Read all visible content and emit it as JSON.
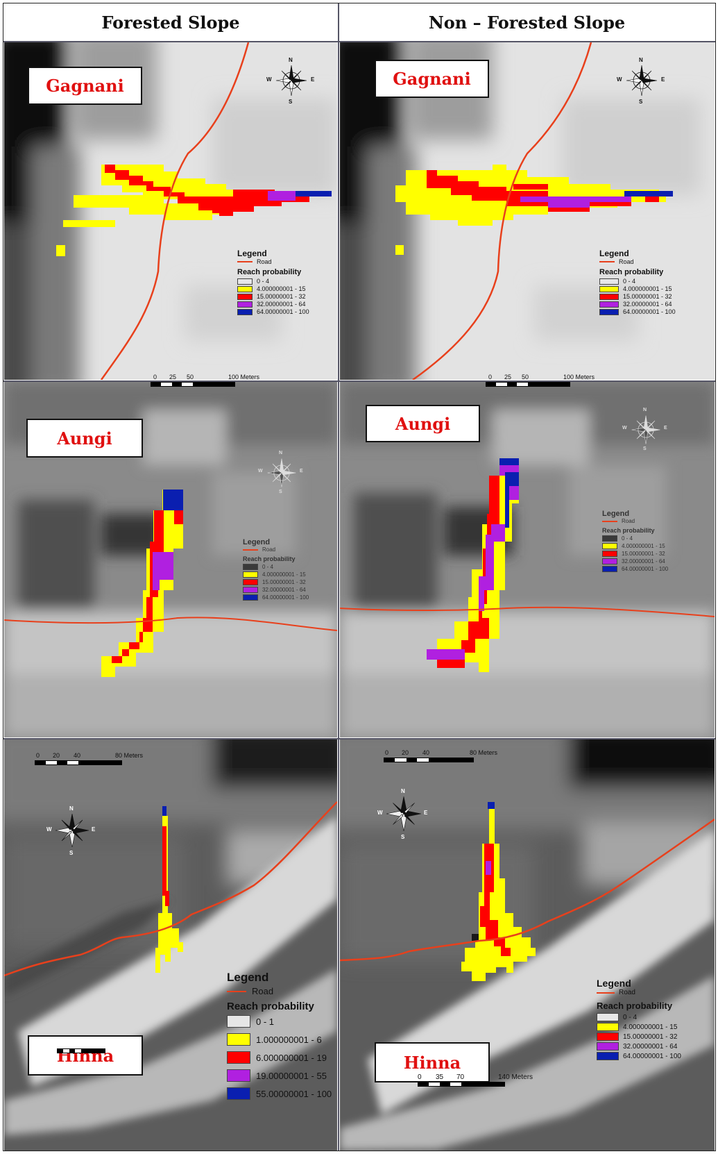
{
  "headers": {
    "left": "Forested Slope",
    "right": "Non – Forested Slope"
  },
  "places": {
    "row1": "Gagnani",
    "row2": "Aungi",
    "row3": "Hinna"
  },
  "legend_common": {
    "title": "Legend",
    "road": "Road",
    "reach": "Reach probability"
  },
  "legend_std": [
    "0 - 4",
    "4.000000001 - 15",
    "15.00000001 - 32",
    "32.00000001 - 64",
    "64.00000001 - 100"
  ],
  "legend_hinna_forested": [
    "0 - 1",
    "1.000000001 - 6",
    "6.000000001 - 19",
    "19.00000001 - 55",
    "55.00000001 - 100"
  ],
  "class_colors": [
    "#e6e6e6",
    "#ffff00",
    "#ff0000",
    "#b020e0",
    "#0a1fb0"
  ],
  "scales": {
    "gagnani": [
      "0",
      "25",
      "50",
      "100 Meters"
    ],
    "aungi": [
      "0",
      "20",
      "40",
      "80 Meters"
    ],
    "hinna": [
      "0",
      "35",
      "70",
      "140 Meters"
    ]
  },
  "compass": {
    "n": "N",
    "s": "S",
    "e": "E",
    "w": "W"
  }
}
